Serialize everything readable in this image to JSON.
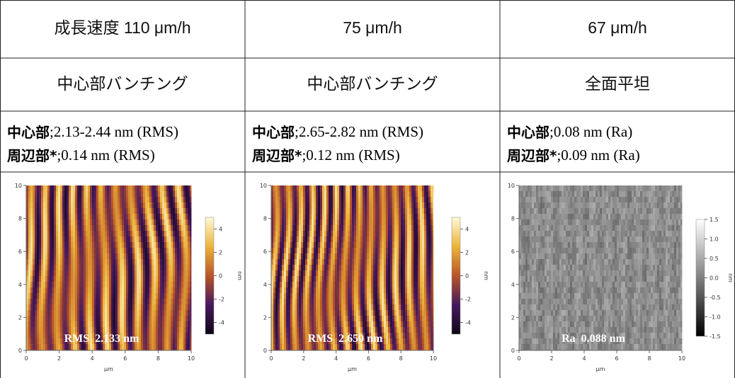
{
  "table": {
    "rows": [
      [
        "成長速度 110 μm/h",
        "75 μm/h",
        "67 μm/h"
      ],
      [
        "中心部バンチング",
        "中心部バンチング",
        "全面平坦"
      ],
      [
        [
          {
            "label": "中心部",
            "text": ";2.13-2.44 nm (RMS)"
          },
          {
            "label": "周辺部*",
            "text": ";0.14 nm (RMS)"
          }
        ],
        [
          {
            "label": "中心部",
            "text": ";2.65-2.82 nm (RMS)"
          },
          {
            "label": "周辺部*",
            "text": ";0.12 nm (RMS)"
          }
        ],
        [
          {
            "label": "中心部",
            "text": ";0.08 nm (Ra)"
          },
          {
            "label": "周辺部*",
            "text": ";0.09 nm (Ra)"
          }
        ]
      ]
    ]
  },
  "images": [
    {
      "palette": "afmhot",
      "axis_ticks": [
        "0",
        "2",
        "4",
        "6",
        "8",
        "10"
      ],
      "axis_unit": "μm",
      "colorbar_ticks": [
        "4",
        "2",
        "0",
        "-2",
        "-4"
      ],
      "colorbar_unit": "nm",
      "overlay": "RMS  2.133 nm"
    },
    {
      "palette": "afmhot",
      "axis_ticks": [
        "0",
        "2",
        "4",
        "6",
        "8",
        "10"
      ],
      "axis_unit": "μm",
      "colorbar_ticks": [
        "4",
        "2",
        "0",
        "-2",
        "-4"
      ],
      "colorbar_unit": "nm",
      "overlay": "RMS  2.650 nm"
    },
    {
      "palette": "gray",
      "axis_ticks": [
        "0",
        "2",
        "4",
        "6",
        "8",
        "10"
      ],
      "axis_unit": "μm",
      "colorbar_ticks": [
        "1.5",
        "1.0",
        "0.5",
        "0.0",
        "-0.5",
        "-1.0",
        "-1.5"
      ],
      "colorbar_unit": "nm",
      "overlay": "Ra  0.088 nm"
    }
  ]
}
